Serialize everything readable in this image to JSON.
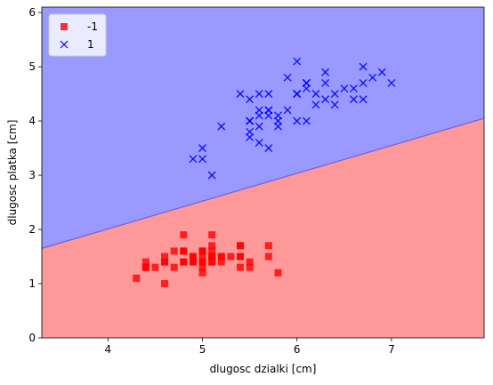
{
  "chart_data": {
    "type": "scatter",
    "title": "",
    "xlabel": "dlugosc dzialki [cm]",
    "ylabel": "dlugosc platka [cm]",
    "xlim": [
      3.3,
      7.98
    ],
    "ylim": [
      0,
      6.1
    ],
    "xticks": [
      4,
      5,
      6,
      7
    ],
    "yticks": [
      0,
      1,
      2,
      3,
      4,
      5,
      6
    ],
    "grid": false,
    "legend_position": "top-left",
    "decision_regions": {
      "boundary_line": [
        [
          3.3,
          1.65
        ],
        [
          7.98,
          4.05
        ]
      ],
      "region_below": {
        "class": "-1",
        "color": "#ff9999"
      },
      "region_above": {
        "class": "1",
        "color": "#9999ff"
      }
    },
    "series": [
      {
        "name": "-1",
        "marker": "square",
        "color": "#ff0000",
        "points": [
          [
            5.1,
            1.4
          ],
          [
            4.9,
            1.4
          ],
          [
            4.7,
            1.3
          ],
          [
            4.6,
            1.5
          ],
          [
            5.0,
            1.4
          ],
          [
            5.4,
            1.7
          ],
          [
            4.6,
            1.4
          ],
          [
            5.0,
            1.5
          ],
          [
            4.4,
            1.4
          ],
          [
            4.9,
            1.5
          ],
          [
            5.4,
            1.5
          ],
          [
            4.8,
            1.6
          ],
          [
            4.8,
            1.4
          ],
          [
            4.3,
            1.1
          ],
          [
            5.8,
            1.2
          ],
          [
            5.7,
            1.5
          ],
          [
            5.4,
            1.3
          ],
          [
            5.1,
            1.4
          ],
          [
            5.7,
            1.7
          ],
          [
            5.1,
            1.5
          ],
          [
            5.4,
            1.7
          ],
          [
            5.1,
            1.5
          ],
          [
            4.6,
            1.0
          ],
          [
            5.1,
            1.7
          ],
          [
            4.8,
            1.9
          ],
          [
            5.0,
            1.6
          ],
          [
            5.0,
            1.6
          ],
          [
            5.2,
            1.5
          ],
          [
            5.2,
            1.4
          ],
          [
            4.7,
            1.6
          ],
          [
            4.8,
            1.6
          ],
          [
            5.4,
            1.5
          ],
          [
            5.2,
            1.5
          ],
          [
            5.5,
            1.4
          ],
          [
            4.9,
            1.5
          ],
          [
            5.0,
            1.2
          ],
          [
            5.5,
            1.3
          ],
          [
            4.9,
            1.4
          ],
          [
            4.4,
            1.3
          ],
          [
            5.1,
            1.5
          ],
          [
            5.0,
            1.3
          ],
          [
            4.5,
            1.3
          ],
          [
            4.4,
            1.3
          ],
          [
            5.0,
            1.6
          ],
          [
            5.1,
            1.9
          ],
          [
            4.8,
            1.4
          ],
          [
            5.1,
            1.6
          ],
          [
            4.6,
            1.4
          ],
          [
            5.3,
            1.5
          ],
          [
            5.0,
            1.4
          ]
        ]
      },
      {
        "name": "1",
        "marker": "x",
        "color": "#0000ff",
        "points": [
          [
            7.0,
            4.7
          ],
          [
            6.4,
            4.5
          ],
          [
            6.9,
            4.9
          ],
          [
            5.5,
            4.0
          ],
          [
            6.5,
            4.6
          ],
          [
            5.7,
            4.5
          ],
          [
            6.3,
            4.7
          ],
          [
            4.9,
            3.3
          ],
          [
            6.6,
            4.6
          ],
          [
            5.2,
            3.9
          ],
          [
            5.0,
            3.5
          ],
          [
            5.9,
            4.2
          ],
          [
            6.0,
            4.0
          ],
          [
            6.1,
            4.7
          ],
          [
            5.6,
            3.6
          ],
          [
            6.7,
            4.4
          ],
          [
            5.6,
            4.5
          ],
          [
            5.8,
            4.1
          ],
          [
            6.2,
            4.5
          ],
          [
            5.6,
            3.9
          ],
          [
            5.9,
            4.8
          ],
          [
            6.1,
            4.0
          ],
          [
            6.3,
            4.9
          ],
          [
            6.1,
            4.7
          ],
          [
            6.4,
            4.3
          ],
          [
            6.6,
            4.4
          ],
          [
            6.8,
            4.8
          ],
          [
            6.7,
            5.0
          ],
          [
            6.0,
            4.5
          ],
          [
            5.7,
            3.5
          ],
          [
            5.5,
            3.8
          ],
          [
            5.5,
            3.7
          ],
          [
            5.8,
            3.9
          ],
          [
            6.0,
            5.1
          ],
          [
            5.4,
            4.5
          ],
          [
            6.0,
            4.5
          ],
          [
            6.7,
            4.7
          ],
          [
            6.3,
            4.4
          ],
          [
            5.6,
            4.1
          ],
          [
            5.5,
            4.0
          ],
          [
            5.5,
            4.4
          ],
          [
            6.1,
            4.6
          ],
          [
            5.8,
            4.0
          ],
          [
            5.0,
            3.3
          ],
          [
            5.6,
            4.2
          ],
          [
            5.7,
            4.2
          ],
          [
            5.7,
            4.2
          ],
          [
            6.2,
            4.3
          ],
          [
            5.1,
            3.0
          ],
          [
            5.7,
            4.1
          ]
        ]
      }
    ]
  }
}
